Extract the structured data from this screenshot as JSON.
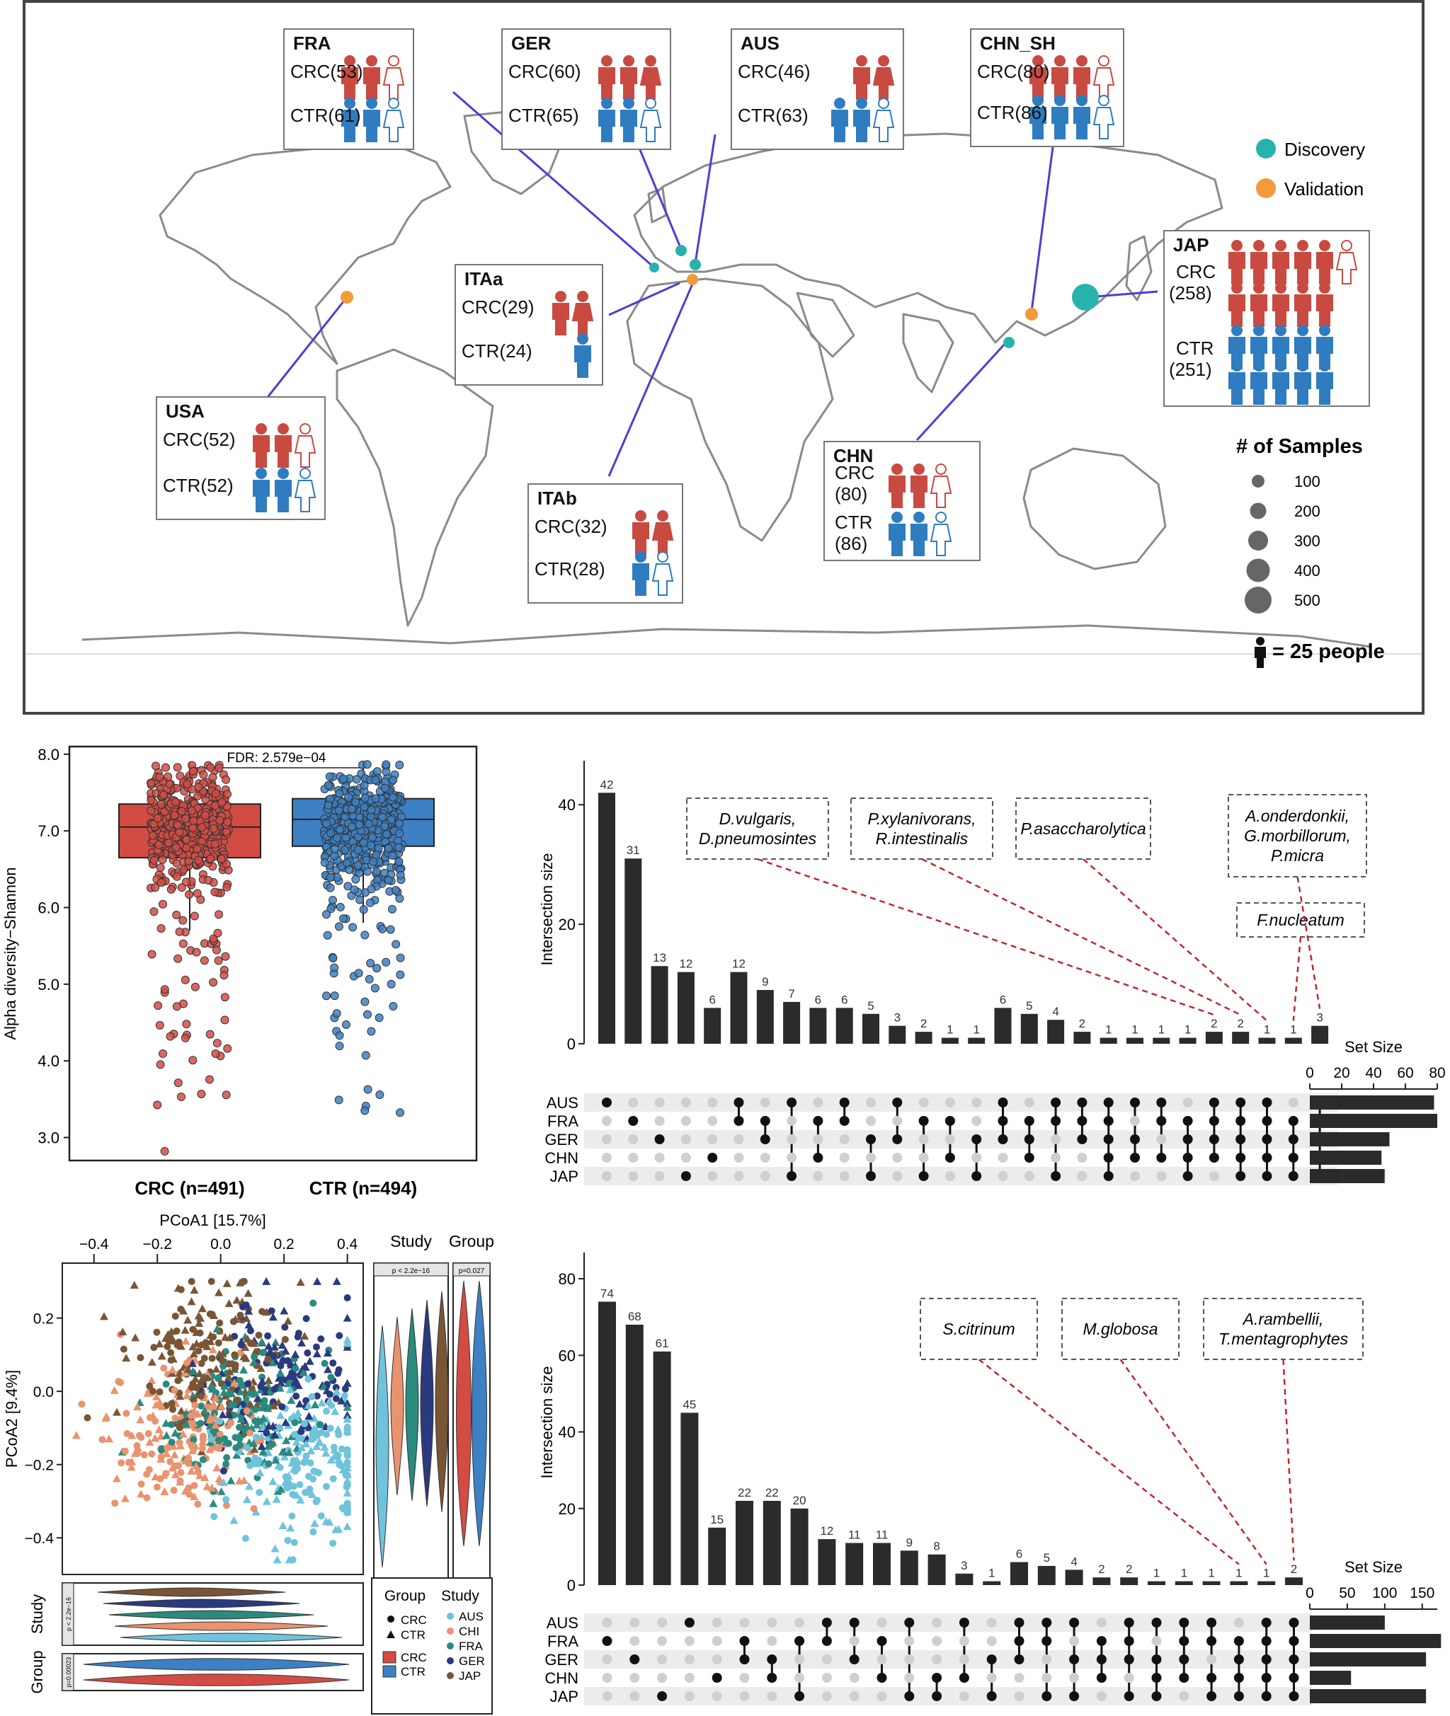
{
  "map": {
    "legend": {
      "discovery": "Discovery",
      "validation": "Validation",
      "discovery_color": "#27b3ad",
      "validation_color": "#f39a3a"
    },
    "size_legend": {
      "title": "# of Samples",
      "sizes": [
        "100",
        "200",
        "300",
        "400",
        "500"
      ]
    },
    "people_legend": "= 25 people",
    "crc_color": "#c94a41",
    "ctr_color": "#2f7cc0",
    "studies": [
      {
        "id": "FRA",
        "name": "FRA",
        "crc": "CRC(53)",
        "ctr": "CTR(61)",
        "crc_icons": 3,
        "ctr_icons": 3,
        "cohort": "discovery"
      },
      {
        "id": "GER",
        "name": "GER",
        "crc": "CRC(60)",
        "ctr": "CTR(65)",
        "crc_icons": 3,
        "ctr_icons": 3,
        "cohort": "discovery"
      },
      {
        "id": "AUS",
        "name": "AUS",
        "crc": "CRC(46)",
        "ctr": "CTR(63)",
        "crc_icons": 2,
        "ctr_icons": 3,
        "cohort": "discovery"
      },
      {
        "id": "CHN_SH",
        "name": "CHN_SH",
        "crc": "CRC(80)",
        "ctr": "CTR(86)",
        "crc_icons": 4,
        "ctr_icons": 4,
        "cohort": "validation"
      },
      {
        "id": "ITAa",
        "name": "ITAa",
        "crc": "CRC(29)",
        "ctr": "CTR(24)",
        "crc_icons": 2,
        "ctr_icons": 1,
        "cohort": "validation"
      },
      {
        "id": "USA",
        "name": "USA",
        "crc": "CRC(52)",
        "ctr": "CTR(52)",
        "crc_icons": 3,
        "ctr_icons": 3,
        "cohort": "validation"
      },
      {
        "id": "ITAb",
        "name": "ITAb",
        "crc": "CRC(32)",
        "ctr": "CTR(28)",
        "crc_icons": 2,
        "ctr_icons": 2,
        "cohort": "validation"
      },
      {
        "id": "CHN",
        "name": "CHN",
        "crc": "CRC",
        "crc_n": "(80)",
        "ctr": "CTR",
        "ctr_n": "(86)",
        "crc_icons": 3,
        "ctr_icons": 3,
        "cohort": "discovery"
      },
      {
        "id": "JAP",
        "name": "JAP",
        "crc": "CRC",
        "crc_n": "(258)",
        "ctr": "CTR",
        "ctr_n": "(251)",
        "crc_icons": 11,
        "ctr_icons": 10,
        "cohort": "discovery"
      }
    ]
  },
  "chart_data": [
    {
      "type": "box",
      "id": "alpha",
      "ylabel": "Alpha diversity−Shannon",
      "ylim": [
        2.7,
        8.1
      ],
      "yticks": [
        "3.0",
        "4.0",
        "5.0",
        "6.0",
        "7.0",
        "8.0"
      ],
      "annotation": "FDR: 2.579e−04",
      "groups": [
        {
          "name": "CRC (n=491)",
          "color": "#d34c44",
          "q1": 6.65,
          "median": 7.05,
          "q3": 7.35,
          "whisker_low": 5.7,
          "whisker_high": 7.9
        },
        {
          "name": "CTR (n=494)",
          "color": "#3d80c3",
          "q1": 6.8,
          "median": 7.15,
          "q3": 7.42,
          "whisker_low": 5.8,
          "whisker_high": 7.9
        }
      ]
    },
    {
      "type": "upset",
      "id": "bacteria",
      "ylabel": "Intersection size",
      "yticks": [
        "0",
        "20",
        "40"
      ],
      "ymax": 45,
      "values": [
        42,
        31,
        13,
        12,
        6,
        12,
        9,
        7,
        6,
        6,
        5,
        3,
        2,
        1,
        1,
        6,
        5,
        4,
        2,
        1,
        1,
        1,
        1,
        2,
        2,
        1,
        1,
        3
      ],
      "sets": [
        "AUS",
        "FRA",
        "GER",
        "CHN",
        "JAP"
      ],
      "set_sizes": [
        78,
        80,
        50,
        45,
        47
      ],
      "set_size_title": "Set Size",
      "set_size_ticks": [
        "0",
        "20",
        "40",
        "60",
        "80"
      ],
      "set_size_max": 80,
      "matrix": [
        [
          0
        ],
        [
          1
        ],
        [
          2
        ],
        [
          4
        ],
        [
          3
        ],
        [
          0,
          1
        ],
        [
          1,
          2
        ],
        [
          0,
          4
        ],
        [
          1,
          3
        ],
        [
          0,
          1
        ],
        [
          2,
          4
        ],
        [
          0,
          2
        ],
        [
          1,
          4
        ],
        [
          1,
          3
        ],
        [
          2,
          4
        ],
        [
          0,
          1,
          2
        ],
        [
          1,
          2,
          3
        ],
        [
          0,
          1,
          4
        ],
        [
          0,
          1,
          2
        ],
        [
          0,
          1,
          2,
          3,
          4
        ],
        [
          0,
          2,
          3
        ],
        [
          0,
          1,
          3
        ],
        [
          1,
          2,
          3,
          4
        ],
        [
          0,
          1,
          2,
          3
        ],
        [
          0,
          1,
          2,
          3,
          4
        ],
        [
          0,
          1,
          2,
          3,
          4
        ],
        [
          1,
          2,
          3,
          4
        ],
        [
          0,
          1,
          2,
          3,
          4
        ]
      ],
      "annotations": [
        {
          "text": [
            "D.vulgaris,",
            "D.pneumosintes"
          ],
          "target": 23
        },
        {
          "text": [
            "P.xylanivorans,",
            "R.intestinalis"
          ],
          "target": 24
        },
        {
          "text": [
            "P.asaccharolytica"
          ],
          "target": 25
        },
        {
          "text": [
            "F.nucleatum"
          ],
          "target": 26
        },
        {
          "text": [
            "A.onderdonkii,",
            "G.morbillorum,",
            "P.micra"
          ],
          "target": 27
        }
      ]
    },
    {
      "type": "scatter",
      "id": "pcoa",
      "xlabel": "PCoA1 [15.7%]",
      "ylabel": "PCoA2 [9.4%]",
      "xticks": [
        "−0.4",
        "−0.2",
        "0.0",
        "0.2",
        "0.4"
      ],
      "yticks": [
        "0.2",
        "0.0",
        "−0.2",
        "−0.4"
      ],
      "xlim": [
        -0.5,
        0.45
      ],
      "ylim": [
        -0.5,
        0.35
      ],
      "study_colors": {
        "AUS": "#6fc3db",
        "CHI": "#e9936f",
        "FRA": "#2a8a7e",
        "GER": "#2b3a7e",
        "JAP": "#7a5535"
      },
      "legend_group_title": "Group",
      "legend_study_title": "Study",
      "legend_groups": [
        "CRC",
        "CTR"
      ],
      "legend_box_groups": [
        "CRC",
        "CTR"
      ],
      "legend_studies": [
        "AUS",
        "CHI",
        "FRA",
        "GER",
        "JAP"
      ],
      "side_titles": [
        "Study",
        "Group"
      ],
      "side_pvals": [
        "p < 2.2e−16",
        "p=0.027"
      ],
      "bottom_labels": [
        "Study",
        "Group"
      ],
      "bottom_pvals": [
        "p < 2.2e−16",
        "p=0.00023"
      ]
    },
    {
      "type": "upset",
      "id": "fungi",
      "ylabel": "Intersection size",
      "yticks": [
        "0",
        "20",
        "40",
        "60",
        "80"
      ],
      "ymax": 85,
      "values": [
        74,
        68,
        61,
        45,
        15,
        22,
        22,
        20,
        12,
        11,
        11,
        9,
        8,
        3,
        1,
        6,
        5,
        4,
        2,
        2,
        1,
        1,
        1,
        1,
        1,
        2
      ],
      "sets": [
        "AUS",
        "FRA",
        "GER",
        "CHN",
        "JAP"
      ],
      "set_sizes": [
        100,
        175,
        155,
        55,
        155
      ],
      "set_size_title": "Set Size",
      "set_size_ticks": [
        "0",
        "50",
        "100",
        "150"
      ],
      "set_size_max": 170,
      "matrix": [
        [
          1
        ],
        [
          2
        ],
        [
          4
        ],
        [
          0
        ],
        [
          3
        ],
        [
          1,
          2
        ],
        [
          2,
          3
        ],
        [
          1,
          4
        ],
        [
          0,
          1
        ],
        [
          0,
          2
        ],
        [
          1,
          3
        ],
        [
          0,
          4
        ],
        [
          3,
          4
        ],
        [
          0,
          3
        ],
        [
          2,
          4
        ],
        [
          0,
          1,
          2
        ],
        [
          0,
          1,
          4
        ],
        [
          0,
          2,
          4
        ],
        [
          1,
          2,
          3
        ],
        [
          0,
          1,
          2,
          4
        ],
        [
          0,
          2,
          3,
          4
        ],
        [
          0,
          1,
          2,
          3
        ],
        [
          0,
          1,
          3,
          4
        ],
        [
          1,
          2,
          3,
          4
        ],
        [
          0,
          1,
          2,
          3,
          4
        ],
        [
          0,
          1,
          2,
          3,
          4
        ]
      ],
      "annotations": [
        {
          "text": [
            "S.citrinum"
          ],
          "target": 23
        },
        {
          "text": [
            "M.globosa"
          ],
          "target": 24
        },
        {
          "text": [
            "A.rambellii,",
            "T.mentagrophytes"
          ],
          "target": 25
        }
      ]
    }
  ]
}
